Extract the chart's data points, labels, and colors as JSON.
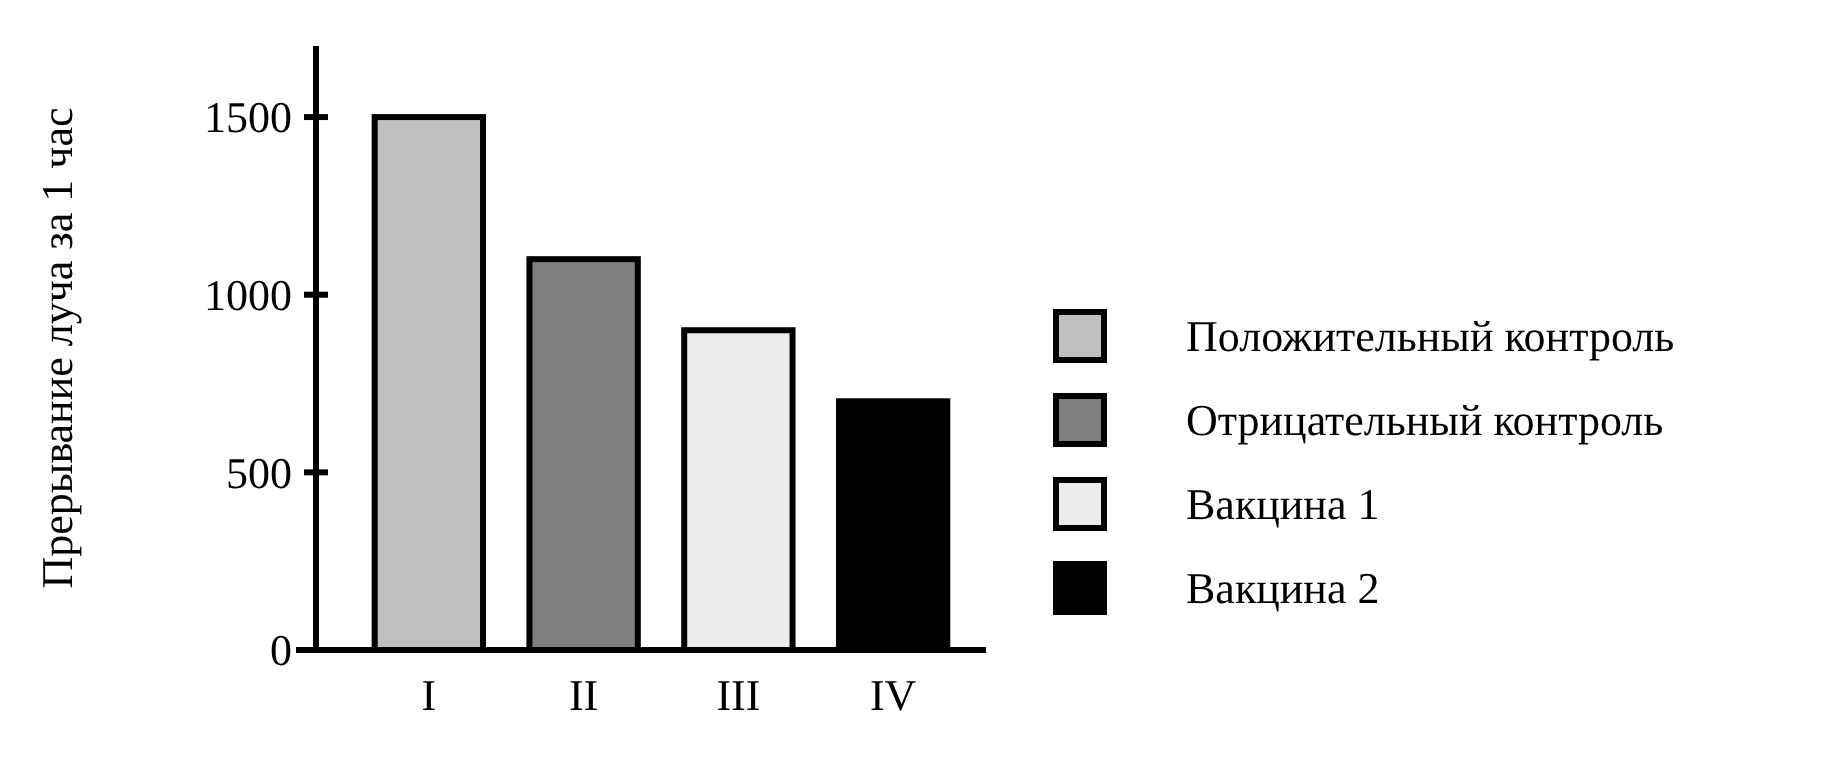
{
  "chart_data": {
    "type": "bar",
    "ylabel": "Прерывание луча за 1 час",
    "categories": [
      "I",
      "II",
      "III",
      "IV"
    ],
    "ylim": [
      0,
      1700
    ],
    "yticks": [
      0,
      500,
      1000,
      1500
    ],
    "grid": false,
    "legend": "right",
    "series": [
      {
        "name": "Положительный контроль",
        "color": "#c0c0c0",
        "values": [
          1500,
          null,
          null,
          null
        ]
      },
      {
        "name": "Отрицательный контроль",
        "color": "#808080",
        "values": [
          null,
          1100,
          null,
          null
        ]
      },
      {
        "name": "Вакцина 1",
        "color": "#ececec",
        "values": [
          null,
          null,
          900,
          null
        ]
      },
      {
        "name": "Вакцина 2",
        "color": "#000000",
        "values": [
          null,
          null,
          null,
          700
        ]
      }
    ]
  }
}
